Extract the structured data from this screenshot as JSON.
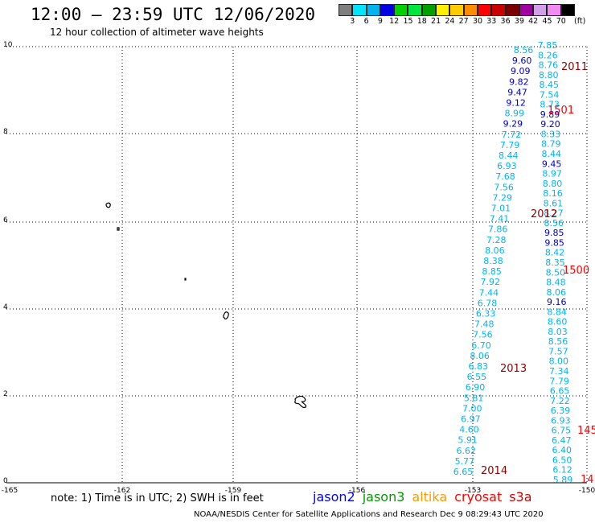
{
  "header": {
    "title": "12:00 – 23:59 UTC 12/06/2020",
    "subtitle": "12 hour collection of altimeter wave heights"
  },
  "colorbar": {
    "colors": [
      "#7f7f7f",
      "#00e5ff",
      "#00b4f0",
      "#0000e0",
      "#00d200",
      "#00e640",
      "#00a000",
      "#fff000",
      "#ffcc00",
      "#ff8c00",
      "#ff0000",
      "#c80000",
      "#780000",
      "#a000a0",
      "#d2a0e6",
      "#f08cf0",
      "#000000"
    ],
    "labels": [
      "3",
      "6",
      "9",
      "12",
      "15",
      "18",
      "21",
      "24",
      "27",
      "30",
      "33",
      "36",
      "39",
      "42",
      "45",
      "70"
    ],
    "unit": "(ft)"
  },
  "map": {
    "x_ticks": [
      "-165",
      "-162",
      "-159",
      "-156",
      "-153",
      "-150"
    ],
    "y_ticks": [
      "0",
      "2",
      "4",
      "6",
      "8",
      "10"
    ]
  },
  "tracks": [
    {
      "id": "2011",
      "color": "#8b0000"
    },
    {
      "id": "1501",
      "color": "#ff0000"
    },
    {
      "id": "2012",
      "color": "#8b0000"
    },
    {
      "id": "1500",
      "color": "#ff0000"
    },
    {
      "id": "2013",
      "color": "#8b0000"
    },
    {
      "id": "145",
      "color": "#ff0000"
    },
    {
      "id": "2014",
      "color": "#8b0000"
    },
    {
      "id": "14",
      "color": "#ff0000"
    }
  ],
  "observations": {
    "track_a": [
      "8.56",
      "9.60",
      "9.09",
      "9.82",
      "9.47",
      "9.12",
      "8.99",
      "9.29",
      "7.72",
      "7.79",
      "8.44",
      "6.93",
      "7.68",
      "7.56",
      "7.29",
      "7.01",
      "7.41",
      "7.86",
      "7.28",
      "8.06",
      "8.38",
      "8.85",
      "7.92",
      "7.44",
      "6.78",
      "6.33",
      "7.48",
      "7.56",
      "6.70",
      "8.06",
      "6.83",
      "6.55",
      "6.90",
      "5.81",
      "7.00",
      "6.97",
      "4.60",
      "5.91",
      "6.62",
      "5.77",
      "6.65"
    ],
    "track_b": [
      "7.85",
      "8.26",
      "8.76",
      "8.80",
      "8.45",
      "7.54",
      "8.73",
      "9.89",
      "9.20",
      "8.33",
      "8.79",
      "8.44",
      "9.45",
      "8.97",
      "8.80",
      "8.16",
      "8.61",
      "8.27",
      "8.56",
      "9.85",
      "9.85",
      "8.42",
      "8.35",
      "8.50",
      "8.48",
      "8.06",
      "9.16",
      "8.84",
      "8.60",
      "8.03",
      "8.56",
      "7.57",
      "8.00",
      "7.34",
      "7.79",
      "6.65",
      "7.22",
      "6.39",
      "6.93",
      "6.75",
      "6.47",
      "6.40",
      "6.50",
      "6.12",
      "5.89"
    ]
  },
  "footer": {
    "note": "note: 1) Time is in UTC; 2) SWH is in feet",
    "legend": [
      {
        "label": "jason2",
        "color": "#0000ff"
      },
      {
        "label": "jason3",
        "color": "#009900"
      },
      {
        "label": "altika",
        "color": "#ff9900"
      },
      {
        "label": "cryosat",
        "color": "#ff0000"
      },
      {
        "label": "s3a",
        "color": "#cc0000"
      }
    ],
    "credit": "NOAA/NESDIS Center for Satellite Applications and Research   Dec  9 08:29:43 UTC 2020"
  }
}
